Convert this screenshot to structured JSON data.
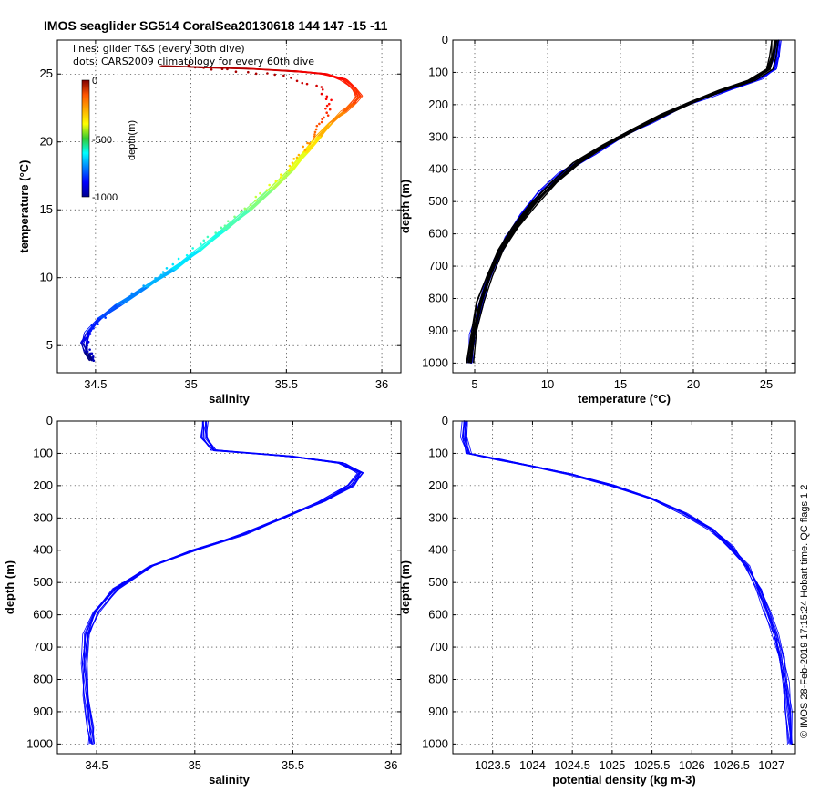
{
  "figure": {
    "title": "IMOS seaglider SG514 CoralSea20130618 144  147  -15  -11",
    "legend_lines": "lines: glider T&S (every 30th dive)",
    "legend_dots": "dots: CARS2009 climatology for every 60th dive",
    "credit": "© IMOS 28-Feb-2019 17:15:24 Hobart time. QC flags 1  2",
    "colorbar": {
      "label": "depth(m)",
      "ticks": [
        "0",
        "-500",
        "-1000"
      ],
      "colormap": "jet"
    },
    "line_color": "#0000ff",
    "dot_color": "#000000"
  },
  "chart_data": [
    {
      "type": "line",
      "id": "ts",
      "xlabel": "salinity",
      "ylabel": "temperature (°C)",
      "xlim": [
        34.3,
        36.1
      ],
      "ylim": [
        3,
        27.5
      ],
      "xticks": [
        34.5,
        35,
        35.5,
        36
      ],
      "xtick_labels": [
        "34.5",
        "35",
        "35.5",
        "36"
      ],
      "yticks": [
        5,
        10,
        15,
        20,
        25
      ],
      "ytick_labels": [
        "5",
        "10",
        "15",
        "20",
        "25"
      ],
      "grid": true,
      "series": [
        {
          "x": [
            34.48,
            34.45,
            34.44,
            34.46,
            34.52,
            34.62,
            34.76,
            34.9,
            35.04,
            35.17,
            35.3,
            35.42,
            35.52,
            35.6,
            35.67,
            35.73,
            35.8,
            35.85,
            35.88,
            35.85,
            35.8,
            35.7,
            35.55,
            35.3,
            35.05,
            34.85
          ],
          "y": [
            3.9,
            4.5,
            5.2,
            6.0,
            7.0,
            8.0,
            9.3,
            10.6,
            12.0,
            13.5,
            15.0,
            16.5,
            17.9,
            19.2,
            20.4,
            21.4,
            22.2,
            22.8,
            23.4,
            24.0,
            24.6,
            25.0,
            25.2,
            25.4,
            25.5,
            25.6
          ],
          "depth": [
            1000,
            950,
            900,
            850,
            800,
            750,
            700,
            650,
            600,
            550,
            500,
            450,
            400,
            350,
            300,
            260,
            220,
            190,
            170,
            150,
            130,
            110,
            80,
            50,
            20,
            0
          ]
        }
      ],
      "climatology": {
        "x": [
          34.5,
          34.46,
          34.45,
          34.5,
          34.62,
          34.78,
          34.94,
          35.1,
          35.26,
          35.4,
          35.52,
          35.6,
          35.66,
          35.7,
          35.73,
          35.68,
          35.5,
          35.2,
          34.95
        ],
        "y": [
          3.9,
          4.6,
          5.5,
          6.6,
          8.0,
          9.6,
          11.3,
          13.0,
          14.8,
          16.5,
          18.2,
          19.6,
          20.8,
          21.8,
          22.8,
          24.0,
          24.8,
          25.3,
          25.6
        ]
      }
    },
    {
      "type": "line",
      "id": "temp-depth",
      "xlabel": "temperature (°C)",
      "ylabel": "depth (m)",
      "xlim": [
        3.5,
        27
      ],
      "ylim": [
        0,
        1030
      ],
      "y_reversed": true,
      "xticks": [
        5,
        10,
        15,
        20,
        25
      ],
      "xtick_labels": [
        "5",
        "10",
        "15",
        "20",
        "25"
      ],
      "yticks": [
        0,
        100,
        200,
        300,
        400,
        500,
        600,
        700,
        800,
        900,
        1000
      ],
      "ytick_labels": [
        "0",
        "100",
        "200",
        "300",
        "400",
        "500",
        "600",
        "700",
        "800",
        "900",
        "1000"
      ],
      "grid": true,
      "series": [
        {
          "x": [
            25.8,
            25.7,
            25.5,
            24.5,
            23.0,
            21.0,
            19.0,
            17.0,
            15.0,
            13.0,
            11.0,
            9.5,
            8.2,
            7.2,
            6.4,
            5.8,
            5.3,
            4.9,
            4.6
          ],
          "y": [
            0,
            50,
            90,
            120,
            145,
            175,
            210,
            255,
            300,
            355,
            410,
            470,
            540,
            610,
            680,
            750,
            830,
            910,
            1000
          ]
        }
      ],
      "climatology": {
        "x": [
          25.6,
          25.5,
          25.2,
          24.0,
          22.0,
          20.0,
          18.0,
          16.0,
          14.0,
          12.0,
          10.5,
          9.0,
          7.8,
          6.8,
          6.0,
          5.4,
          5.0,
          4.7
        ],
        "y": [
          0,
          50,
          90,
          125,
          155,
          190,
          230,
          275,
          325,
          380,
          440,
          510,
          580,
          650,
          730,
          810,
          900,
          1000
        ]
      }
    },
    {
      "type": "line",
      "id": "sal-depth",
      "xlabel": "salinity",
      "ylabel": "depth (m)",
      "xlim": [
        34.3,
        36.05
      ],
      "ylim": [
        0,
        1030
      ],
      "y_reversed": true,
      "xticks": [
        34.5,
        35,
        35.5,
        36
      ],
      "xtick_labels": [
        "34.5",
        "35",
        "35.5",
        "36"
      ],
      "yticks": [
        0,
        100,
        200,
        300,
        400,
        500,
        600,
        700,
        800,
        900,
        1000
      ],
      "ytick_labels": [
        "0",
        "100",
        "200",
        "300",
        "400",
        "500",
        "600",
        "700",
        "800",
        "900",
        "1000"
      ],
      "grid": true,
      "series": [
        {
          "x": [
            35.05,
            35.05,
            35.1,
            35.5,
            35.75,
            35.85,
            35.8,
            35.65,
            35.45,
            35.25,
            35.0,
            34.78,
            34.6,
            34.5,
            34.45,
            34.44,
            34.45,
            34.47,
            34.48
          ],
          "y": [
            0,
            50,
            90,
            110,
            130,
            160,
            200,
            250,
            300,
            350,
            400,
            450,
            520,
            590,
            660,
            750,
            850,
            950,
            1000
          ]
        }
      ]
    },
    {
      "type": "line",
      "id": "dens-depth",
      "xlabel": "potential density (kg m-3)",
      "ylabel": "depth (m)",
      "xlim": [
        1023,
        1027.3
      ],
      "ylim": [
        0,
        1030
      ],
      "y_reversed": true,
      "xticks": [
        1023.5,
        1024,
        1024.5,
        1025,
        1025.5,
        1026,
        1026.5,
        1027
      ],
      "xtick_labels": [
        "1023.5",
        "1024",
        "1024.5",
        "1025",
        "1025.5",
        "1026",
        "1026.5",
        "1027"
      ],
      "yticks": [
        0,
        100,
        200,
        300,
        400,
        500,
        600,
        700,
        800,
        900,
        1000
      ],
      "ytick_labels": [
        "0",
        "100",
        "200",
        "300",
        "400",
        "500",
        "600",
        "700",
        "800",
        "900",
        "1000"
      ],
      "grid": true,
      "series": [
        {
          "x": [
            1023.15,
            1023.15,
            1023.2,
            1023.6,
            1024.0,
            1024.5,
            1025.0,
            1025.5,
            1025.9,
            1026.25,
            1026.5,
            1026.7,
            1026.85,
            1026.95,
            1027.05,
            1027.12,
            1027.18,
            1027.22,
            1027.25
          ],
          "y": [
            0,
            50,
            100,
            120,
            140,
            165,
            200,
            240,
            285,
            335,
            390,
            450,
            520,
            590,
            660,
            730,
            810,
            900,
            1000
          ]
        }
      ]
    }
  ]
}
